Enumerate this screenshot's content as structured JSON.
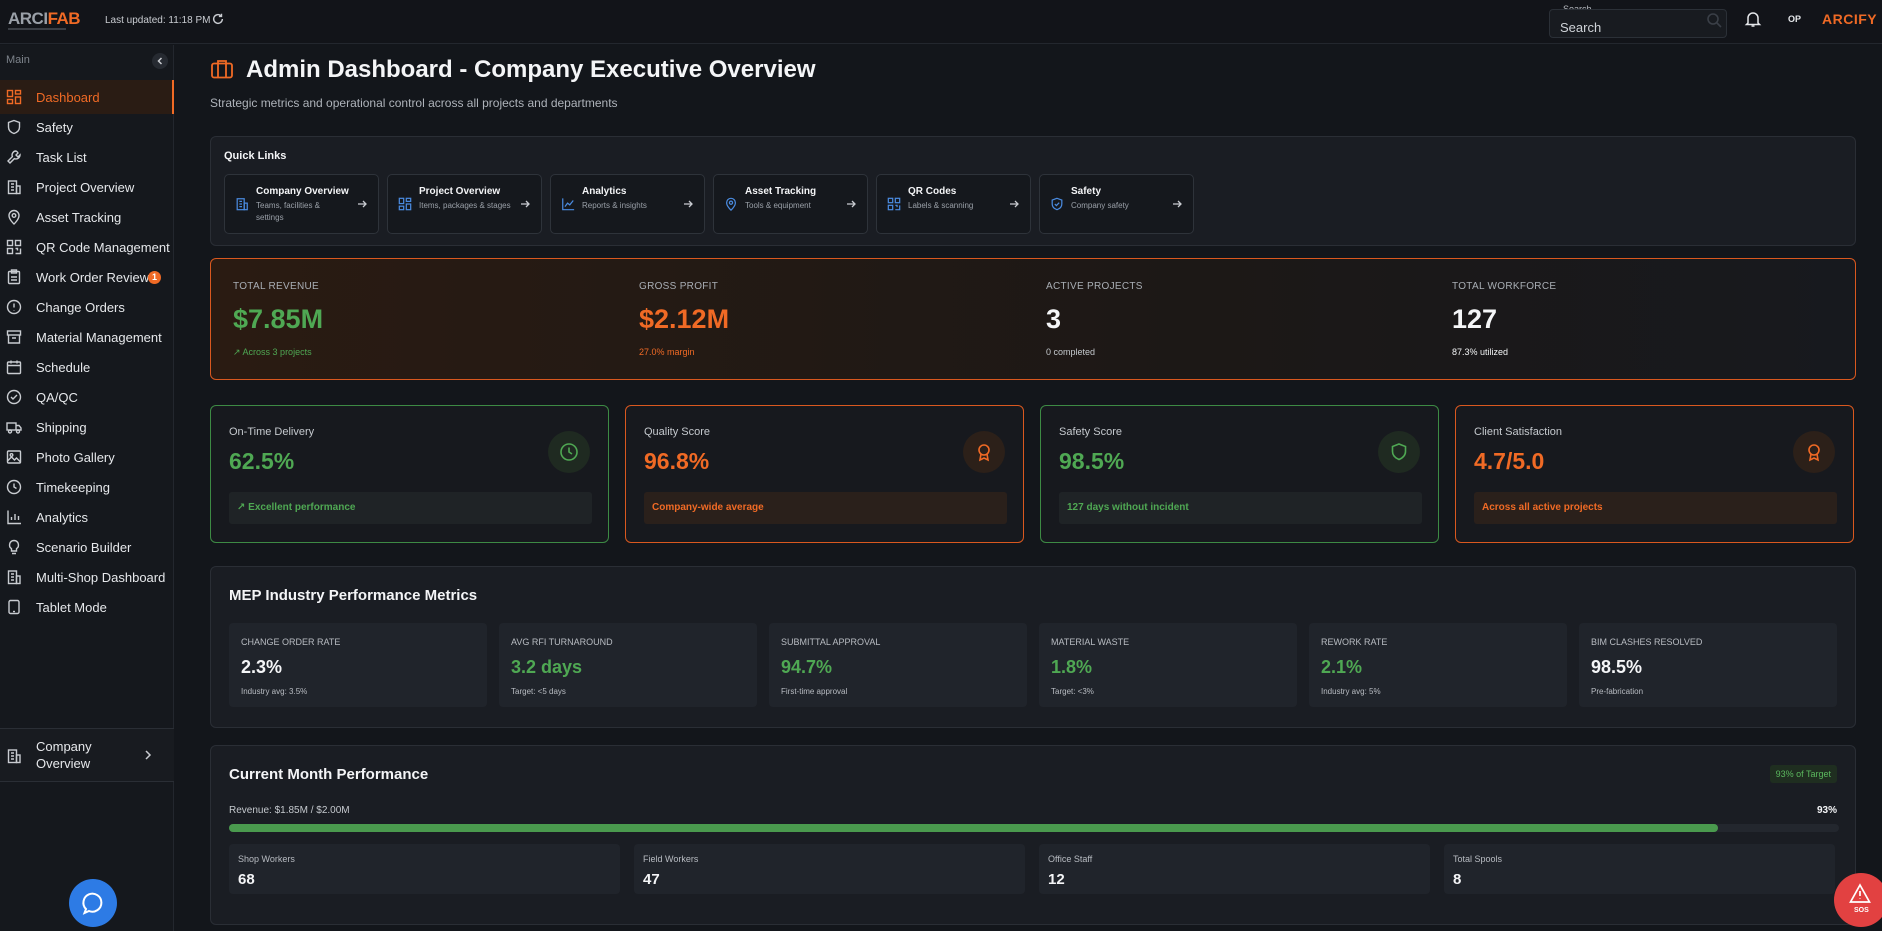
{
  "app": {
    "logo_text_a": "ARCI",
    "logo_text_b": "FAB",
    "last_updated": "Last updated: 11:18 PM",
    "brand_right": "ARCIFY",
    "avatar": "OP"
  },
  "search": {
    "label": "Search",
    "placeholder": "Search"
  },
  "sidebar": {
    "section": "Main",
    "items": [
      {
        "label": "Dashboard",
        "icon": "grid-icon"
      },
      {
        "label": "Safety",
        "icon": "shield-icon"
      },
      {
        "label": "Task List",
        "icon": "wrench-icon"
      },
      {
        "label": "Project Overview",
        "icon": "building-icon"
      },
      {
        "label": "Asset Tracking",
        "icon": "location-pin-icon"
      },
      {
        "label": "QR Code Management",
        "icon": "qr-icon"
      },
      {
        "label": "Work Order Review",
        "icon": "clipboard-icon",
        "badge": "1"
      },
      {
        "label": "Change Orders",
        "icon": "alert-circle-icon"
      },
      {
        "label": "Material Management",
        "icon": "archive-icon"
      },
      {
        "label": "Schedule",
        "icon": "calendar-icon"
      },
      {
        "label": "QA/QC",
        "icon": "check-circle-icon"
      },
      {
        "label": "Shipping",
        "icon": "truck-icon"
      },
      {
        "label": "Photo Gallery",
        "icon": "image-icon"
      },
      {
        "label": "Timekeeping",
        "icon": "clock-icon"
      },
      {
        "label": "Analytics",
        "icon": "bar-chart-icon"
      },
      {
        "label": "Scenario Builder",
        "icon": "lightbulb-icon"
      },
      {
        "label": "Multi-Shop Dashboard",
        "icon": "building-icon"
      },
      {
        "label": "Tablet Mode",
        "icon": "tablet-icon"
      }
    ],
    "company": "Company Overview"
  },
  "header": {
    "title": "Admin Dashboard - Company Executive Overview",
    "subtitle": "Strategic metrics and operational control across all projects and departments"
  },
  "quick_links": {
    "title": "Quick Links",
    "items": [
      {
        "title": "Company Overview",
        "desc": "Teams, facilities & settings",
        "icon": "building-icon"
      },
      {
        "title": "Project Overview",
        "desc": "Items, packages & stages",
        "icon": "grid-icon"
      },
      {
        "title": "Analytics",
        "desc": "Reports & insights",
        "icon": "line-chart-icon"
      },
      {
        "title": "Asset Tracking",
        "desc": "Tools & equipment",
        "icon": "location-pin-icon"
      },
      {
        "title": "QR Codes",
        "desc": "Labels & scanning",
        "icon": "qr-icon"
      },
      {
        "title": "Safety",
        "desc": "Company safety",
        "icon": "shield-check-icon"
      }
    ]
  },
  "kpis": [
    {
      "label": "TOTAL REVENUE",
      "value": "$7.85M",
      "sub": "Across 3 projects",
      "color": "#4fa853"
    },
    {
      "label": "GROSS PROFIT",
      "value": "$2.12M",
      "sub": "27.0% margin",
      "color": "#f06a25"
    },
    {
      "label": "ACTIVE PROJECTS",
      "value": "3",
      "sub": "0 completed",
      "color": "#f4f5f7"
    },
    {
      "label": "TOTAL WORKFORCE",
      "value": "127",
      "sub": "87.3% utilized",
      "color": "#f4f5f7"
    }
  ],
  "metric_cards": [
    {
      "label": "On-Time Delivery",
      "value": "62.5%",
      "foot": "Excellent performance",
      "icon": "clock-icon",
      "tone": "green"
    },
    {
      "label": "Quality Score",
      "value": "96.8%",
      "foot": "Company-wide average",
      "icon": "award-icon",
      "tone": "orange"
    },
    {
      "label": "Safety Score",
      "value": "98.5%",
      "foot": "127 days without incident",
      "icon": "shield-icon",
      "tone": "green"
    },
    {
      "label": "Client Satisfaction",
      "value": "4.7/5.0",
      "foot": "Across all active projects",
      "icon": "award-icon",
      "tone": "orange"
    }
  ],
  "mep": {
    "title": "MEP Industry Performance Metrics",
    "items": [
      {
        "label": "CHANGE ORDER RATE",
        "value": "2.3%",
        "sub": "Industry avg: 3.5%",
        "color": "#f4f5f7"
      },
      {
        "label": "AVG RFI TURNAROUND",
        "value": "3.2 days",
        "sub": "Target: <5 days",
        "color": "#4fa853"
      },
      {
        "label": "SUBMITTAL APPROVAL",
        "value": "94.7%",
        "sub": "First-time approval",
        "color": "#4fa853"
      },
      {
        "label": "MATERIAL WASTE",
        "value": "1.8%",
        "sub": "Target: <3%",
        "color": "#4fa853"
      },
      {
        "label": "REWORK RATE",
        "value": "2.1%",
        "sub": "Industry avg: 5%",
        "color": "#4fa853"
      },
      {
        "label": "BIM CLASHES RESOLVED",
        "value": "98.5%",
        "sub": "Pre-fabrication",
        "color": "#f4f5f7"
      }
    ]
  },
  "current_month": {
    "title": "Current Month Performance",
    "badge": "93% of Target",
    "revenue_label": "Revenue: $1.85M / $2.00M",
    "revenue_pct": "93%",
    "progress_fraction": 0.925,
    "items": [
      {
        "label": "Shop Workers",
        "value": "68"
      },
      {
        "label": "Field Workers",
        "value": "47"
      },
      {
        "label": "Office Staff",
        "value": "12"
      },
      {
        "label": "Total Spools",
        "value": "8"
      }
    ]
  },
  "sos": {
    "label": "SOS"
  },
  "colors": {
    "accent": "#f06a25",
    "green": "#4fa853",
    "background": "#13161b"
  }
}
